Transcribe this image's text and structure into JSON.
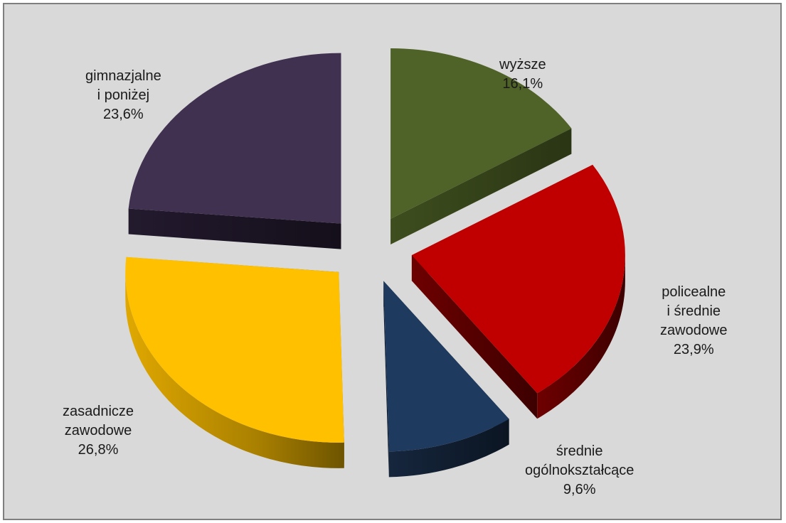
{
  "chart_data": {
    "type": "pie",
    "style": "3d-exploded",
    "title": "",
    "slices": [
      {
        "name": "wyższe",
        "label_lines": [
          "wyższe"
        ],
        "value_label": "16,1%",
        "value": 16.1,
        "color": "#4f6228"
      },
      {
        "name": "policealne i średnie zawodowe",
        "label_lines": [
          "policealne",
          "i średnie",
          "zawodowe"
        ],
        "value_label": "23,9%",
        "value": 23.9,
        "color": "#c00000"
      },
      {
        "name": "średnie ogólnokształcące",
        "label_lines": [
          "średnie",
          "ogólnokształcące"
        ],
        "value_label": "9,6%",
        "value": 9.6,
        "color": "#1f3a5f"
      },
      {
        "name": "zasadnicze zawodowe",
        "label_lines": [
          "zasadnicze",
          "zawodowe"
        ],
        "value_label": "26,8%",
        "value": 26.8,
        "color": "#ffc000"
      },
      {
        "name": "gimnazjalne i poniżej",
        "label_lines": [
          "gimnazjalne",
          "i poniżej"
        ],
        "value_label": "23,6%",
        "value": 23.6,
        "color": "#403151"
      }
    ]
  }
}
